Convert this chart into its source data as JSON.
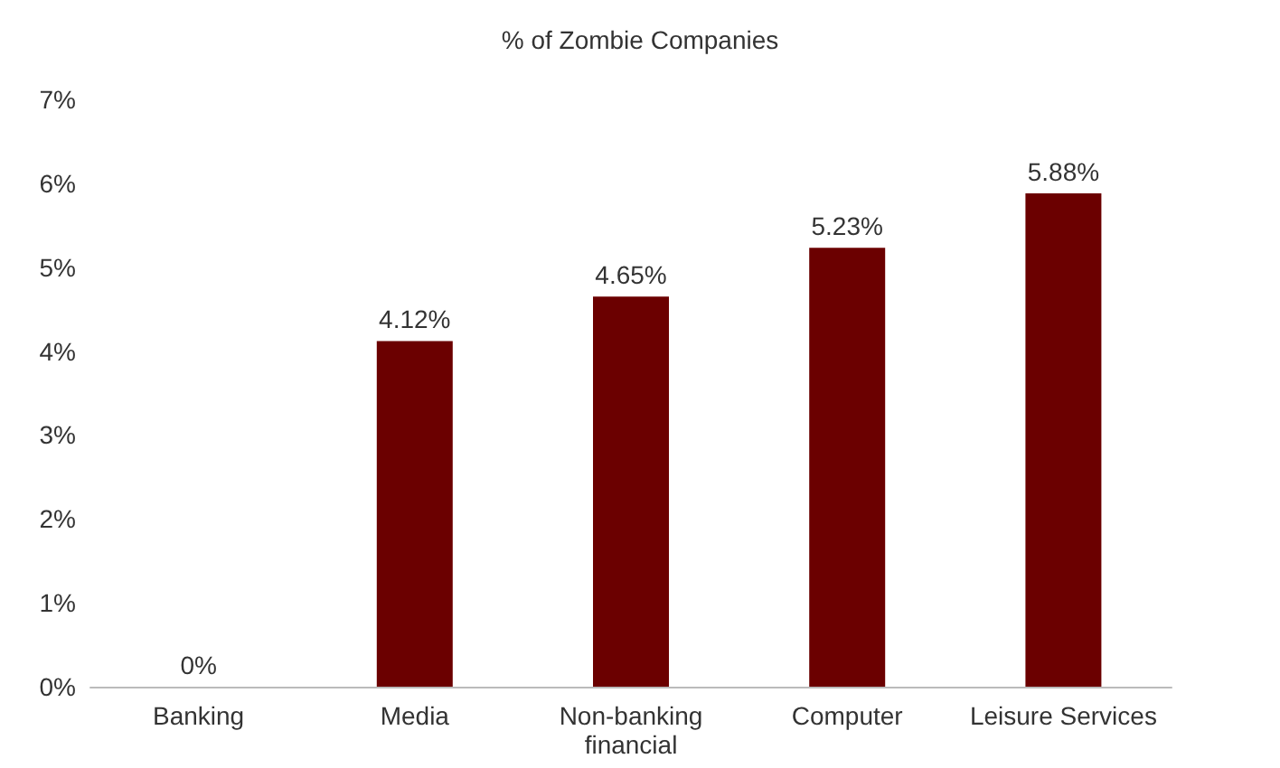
{
  "chart_data": {
    "type": "bar",
    "title": "% of Zombie Companies",
    "categories": [
      "Banking",
      "Media",
      "Non-banking\nfinancial",
      "Computer",
      "Leisure Services"
    ],
    "values": [
      0,
      4.12,
      4.65,
      5.23,
      5.88
    ],
    "value_labels": [
      "0%",
      "4.12%",
      "4.65%",
      "5.23%",
      "5.88%"
    ],
    "color": "#6b0000",
    "ylim": [
      0,
      7
    ],
    "yticks": [
      {
        "value": 0,
        "label": "0%"
      },
      {
        "value": 1,
        "label": "1%"
      },
      {
        "value": 2,
        "label": "2%"
      },
      {
        "value": 3,
        "label": "3%"
      },
      {
        "value": 4,
        "label": "4%"
      },
      {
        "value": 5,
        "label": "5%"
      },
      {
        "value": 6,
        "label": "6%"
      },
      {
        "value": 7,
        "label": "7%"
      }
    ],
    "grid": false
  }
}
